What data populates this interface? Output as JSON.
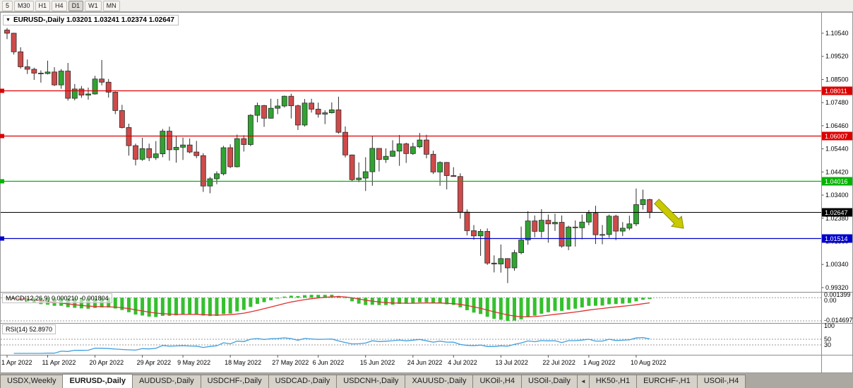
{
  "toolbar": {
    "timeframes": [
      {
        "label": "5",
        "active": false
      },
      {
        "label": "M30",
        "active": false
      },
      {
        "label": "H1",
        "active": false
      },
      {
        "label": "H4",
        "active": false
      },
      {
        "label": "D1",
        "active": true
      },
      {
        "label": "W1",
        "active": false
      },
      {
        "label": "MN",
        "active": false
      }
    ]
  },
  "chart": {
    "collapse_icon": "▼",
    "title": "EURUSD-,Daily  1.03201 1.03241 1.02374 1.02647",
    "macd_label": "MACD(12,26,9) 0.000210 -0.001804",
    "rsi_label": "RSI(14) 52.8970"
  },
  "price_axis": {
    "top_value": 1.1054,
    "step": 0.0102,
    "ticks": [
      "1.10540",
      "1.09520",
      "1.08500",
      "1.07480",
      "1.06460",
      "1.05440",
      "1.04420",
      "1.03400",
      "1.02380",
      "1.01360",
      "1.00340",
      "0.99320"
    ]
  },
  "levels": [
    {
      "label": "1.08011",
      "value": 1.08011,
      "color": "#dd0000",
      "kind": "hline"
    },
    {
      "label": "1.06007",
      "value": 1.06007,
      "color": "#dd0000",
      "kind": "hline"
    },
    {
      "label": "1.04016",
      "value": 1.04016,
      "color": "#00b400",
      "kind": "hline"
    },
    {
      "label": "1.02647",
      "value": 1.02647,
      "color": "#000000",
      "kind": "price"
    },
    {
      "label": "1.01514",
      "value": 1.01514,
      "color": "#0000cc",
      "kind": "hline"
    }
  ],
  "macd_axis": {
    "max_label": "0.001399",
    "zero_label": "0.00",
    "min_label": "-0.014697"
  },
  "rsi_axis": {
    "top_label": "100",
    "levels": [
      {
        "value": 50,
        "label": "50"
      },
      {
        "value": 30,
        "label": "30"
      }
    ]
  },
  "objects": [
    {
      "type": "arrow",
      "name": "down-right-arrow",
      "color": "#c9c900"
    }
  ],
  "colors": {
    "candle_up": "#31a331",
    "candle_down": "#cf4a4a",
    "candle_outline": "#2d2d2d",
    "macd_hist": "#35c02f",
    "macd_signal": "#e03030",
    "rsi_line": "#3f9fe0",
    "axis_line": "#8c8c8c",
    "level_dash": "#9a9a9a"
  },
  "chart_data": {
    "type": "candlestick",
    "symbol": "EURUSD-",
    "period": "Daily",
    "title": "EURUSD-,Daily",
    "last_ohlc": {
      "open": 1.03201,
      "high": 1.03241,
      "low": 1.02374,
      "close": 1.02647
    },
    "y_axis": {
      "min": 0.9932,
      "max": 1.1054
    },
    "indicators": [
      {
        "name": "MACD",
        "params": [
          12,
          26,
          9
        ],
        "values": [
          0.00021,
          -0.001804
        ],
        "scale_max": 0.001399,
        "scale_min": -0.014697
      },
      {
        "name": "RSI",
        "params": [
          14
        ],
        "value": 52.897,
        "levels": [
          50,
          30
        ]
      }
    ],
    "horizontal_lines": [
      1.08011,
      1.06007,
      1.04016,
      1.01514
    ],
    "current_price": 1.02647,
    "candles": [
      [
        "2022-04-01",
        1.1068,
        1.1077,
        1.1028,
        1.1054
      ],
      [
        "2022-04-04",
        1.1054,
        1.1056,
        1.096,
        1.0972
      ],
      [
        "2022-04-05",
        1.0972,
        1.0992,
        1.0898,
        1.0906
      ],
      [
        "2022-04-06",
        1.0906,
        1.0938,
        1.0874,
        1.0895
      ],
      [
        "2022-04-07",
        1.0895,
        1.0902,
        1.0848,
        1.0878
      ],
      [
        "2022-04-08",
        1.0878,
        1.089,
        1.0836,
        1.0876
      ],
      [
        "2022-04-11",
        1.0876,
        1.0933,
        1.0872,
        1.0883
      ],
      [
        "2022-04-12",
        1.0883,
        1.0904,
        1.0821,
        1.0826
      ],
      [
        "2022-04-13",
        1.0826,
        1.0896,
        1.0809,
        1.0887
      ],
      [
        "2022-04-14",
        1.0887,
        1.0923,
        1.0757,
        1.0767
      ],
      [
        "2022-04-15",
        1.0767,
        1.083,
        1.0758,
        1.0808
      ],
      [
        "2022-04-18",
        1.0808,
        1.0821,
        1.0769,
        1.0781
      ],
      [
        "2022-04-19",
        1.0781,
        1.0814,
        1.0761,
        1.0786
      ],
      [
        "2022-04-20",
        1.0786,
        1.0866,
        1.0783,
        1.0852
      ],
      [
        "2022-04-21",
        1.0852,
        1.0936,
        1.0824,
        1.0838
      ],
      [
        "2022-04-22",
        1.0838,
        1.0852,
        1.077,
        1.0794
      ],
      [
        "2022-04-25",
        1.0794,
        1.0797,
        1.0697,
        1.0713
      ],
      [
        "2022-04-26",
        1.0713,
        1.0738,
        1.0634,
        1.0638
      ],
      [
        "2022-04-27",
        1.0638,
        1.0655,
        1.0514,
        1.0558
      ],
      [
        "2022-04-28",
        1.0558,
        1.0567,
        1.0471,
        1.0498
      ],
      [
        "2022-04-29",
        1.0498,
        1.0593,
        1.0491,
        1.0545
      ],
      [
        "2022-05-02",
        1.0545,
        1.0567,
        1.049,
        1.0505
      ],
      [
        "2022-05-03",
        1.0505,
        1.0578,
        1.0495,
        1.0522
      ],
      [
        "2022-05-04",
        1.0522,
        1.0632,
        1.0507,
        1.0622
      ],
      [
        "2022-05-05",
        1.0622,
        1.0642,
        1.0492,
        1.054
      ],
      [
        "2022-05-06",
        1.054,
        1.0599,
        1.0483,
        1.0551
      ],
      [
        "2022-05-09",
        1.0551,
        1.0594,
        1.0495,
        1.0561
      ],
      [
        "2022-05-10",
        1.0561,
        1.059,
        1.0524,
        1.053
      ],
      [
        "2022-05-11",
        1.053,
        1.0579,
        1.0503,
        1.0514
      ],
      [
        "2022-05-12",
        1.0514,
        1.0525,
        1.0354,
        1.038
      ],
      [
        "2022-05-13",
        1.038,
        1.042,
        1.0348,
        1.0412
      ],
      [
        "2022-05-16",
        1.0412,
        1.0445,
        1.0388,
        1.0434
      ],
      [
        "2022-05-17",
        1.0434,
        1.0557,
        1.0427,
        1.0549
      ],
      [
        "2022-05-18",
        1.0549,
        1.0564,
        1.0459,
        1.0465
      ],
      [
        "2022-05-19",
        1.0465,
        1.0607,
        1.0462,
        1.0589
      ],
      [
        "2022-05-20",
        1.0589,
        1.0604,
        1.0532,
        1.0563
      ],
      [
        "2022-05-23",
        1.0563,
        1.0697,
        1.0556,
        1.0692
      ],
      [
        "2022-05-24",
        1.0692,
        1.0748,
        1.0661,
        1.0735
      ],
      [
        "2022-05-25",
        1.0735,
        1.0738,
        1.0641,
        1.0679
      ],
      [
        "2022-05-26",
        1.0679,
        1.0765,
        1.0677,
        1.0723
      ],
      [
        "2022-05-27",
        1.0723,
        1.0764,
        1.0697,
        1.0733
      ],
      [
        "2022-05-30",
        1.0733,
        1.0779,
        1.0726,
        1.0776
      ],
      [
        "2022-05-31",
        1.0776,
        1.0787,
        1.0678,
        1.0734
      ],
      [
        "2022-06-01",
        1.0734,
        1.0739,
        1.0627,
        1.0649
      ],
      [
        "2022-06-02",
        1.0649,
        1.0764,
        1.0642,
        1.0746
      ],
      [
        "2022-06-03",
        1.0746,
        1.0765,
        1.0704,
        1.0719
      ],
      [
        "2022-06-06",
        1.0719,
        1.0748,
        1.0682,
        1.0697
      ],
      [
        "2022-06-07",
        1.0697,
        1.0714,
        1.0653,
        1.0703
      ],
      [
        "2022-06-08",
        1.0703,
        1.0749,
        1.07,
        1.0716
      ],
      [
        "2022-06-09",
        1.0716,
        1.0774,
        1.0611,
        1.0617
      ],
      [
        "2022-06-10",
        1.0617,
        1.0643,
        1.0506,
        1.0517
      ],
      [
        "2022-06-13",
        1.0517,
        1.0519,
        1.0399,
        1.0408
      ],
      [
        "2022-06-14",
        1.0408,
        1.0484,
        1.0397,
        1.0415
      ],
      [
        "2022-06-15",
        1.0415,
        1.0507,
        1.0358,
        1.0443
      ],
      [
        "2022-06-16",
        1.0443,
        1.0601,
        1.0381,
        1.0546
      ],
      [
        "2022-06-17",
        1.0546,
        1.0546,
        1.0444,
        1.0497
      ],
      [
        "2022-06-20",
        1.0497,
        1.0546,
        1.0482,
        1.0511
      ],
      [
        "2022-06-21",
        1.0511,
        1.0582,
        1.0509,
        1.0534
      ],
      [
        "2022-06-22",
        1.0534,
        1.0605,
        1.0469,
        1.0566
      ],
      [
        "2022-06-23",
        1.0566,
        1.0571,
        1.0482,
        1.0523
      ],
      [
        "2022-06-24",
        1.0523,
        1.0571,
        1.0517,
        1.0553
      ],
      [
        "2022-06-27",
        1.0553,
        1.0614,
        1.0547,
        1.0583
      ],
      [
        "2022-06-28",
        1.0583,
        1.0606,
        1.0502,
        1.052
      ],
      [
        "2022-06-29",
        1.052,
        1.0536,
        1.0433,
        1.0442
      ],
      [
        "2022-06-30",
        1.0442,
        1.0489,
        1.0381,
        1.0484
      ],
      [
        "2022-07-01",
        1.0484,
        1.0486,
        1.0365,
        1.0426
      ],
      [
        "2022-07-04",
        1.0426,
        1.0463,
        1.0421,
        1.0422
      ],
      [
        "2022-07-05",
        1.0422,
        1.0436,
        1.0236,
        1.0265
      ],
      [
        "2022-07-06",
        1.0265,
        1.0277,
        1.0162,
        1.0183
      ],
      [
        "2022-07-07",
        1.0183,
        1.0208,
        1.0143,
        1.016
      ],
      [
        "2022-07-08",
        1.016,
        1.019,
        1.0072,
        1.018
      ],
      [
        "2022-07-11",
        1.018,
        1.0193,
        1.0032,
        1.004
      ],
      [
        "2022-07-12",
        1.004,
        1.0074,
        0.9999,
        1.0036
      ],
      [
        "2022-07-13",
        1.0036,
        1.0122,
        0.9998,
        1.006
      ],
      [
        "2022-07-14",
        1.006,
        1.0062,
        0.9952,
        1.0019
      ],
      [
        "2022-07-15",
        1.0019,
        1.0098,
        1.0006,
        1.0086
      ],
      [
        "2022-07-18",
        1.0086,
        1.0201,
        1.0079,
        1.0142
      ],
      [
        "2022-07-19",
        1.0142,
        1.0269,
        1.0121,
        1.0226
      ],
      [
        "2022-07-20",
        1.0226,
        1.025,
        1.0154,
        1.018
      ],
      [
        "2022-07-21",
        1.018,
        1.0278,
        1.0152,
        1.0229
      ],
      [
        "2022-07-22",
        1.0229,
        1.0254,
        1.013,
        1.0213
      ],
      [
        "2022-07-25",
        1.0213,
        1.0258,
        1.0182,
        1.022
      ],
      [
        "2022-07-26",
        1.022,
        1.025,
        1.0108,
        1.0115
      ],
      [
        "2022-07-27",
        1.0115,
        1.0205,
        1.0097,
        1.0199
      ],
      [
        "2022-07-28",
        1.0199,
        1.0228,
        1.0113,
        1.0196
      ],
      [
        "2022-07-29",
        1.0196,
        1.0254,
        1.0145,
        1.0221
      ],
      [
        "2022-08-01",
        1.0221,
        1.0274,
        1.0207,
        1.026
      ],
      [
        "2022-08-02",
        1.026,
        1.0293,
        1.0124,
        1.0165
      ],
      [
        "2022-08-03",
        1.0165,
        1.0208,
        1.0123,
        1.0166
      ],
      [
        "2022-08-04",
        1.0166,
        1.0254,
        1.0152,
        1.0247
      ],
      [
        "2022-08-05",
        1.0247,
        1.0253,
        1.0141,
        1.0181
      ],
      [
        "2022-08-08",
        1.0181,
        1.0221,
        1.0159,
        1.0194
      ],
      [
        "2022-08-09",
        1.0194,
        1.0249,
        1.0185,
        1.0213
      ],
      [
        "2022-08-10",
        1.0213,
        1.0369,
        1.0203,
        1.0298
      ],
      [
        "2022-08-11",
        1.0298,
        1.0364,
        1.0276,
        1.03201
      ],
      [
        "2022-08-12",
        1.03201,
        1.03241,
        1.02374,
        1.02647
      ]
    ],
    "date_ticks": [
      {
        "i": 0,
        "label": "1 Apr 2022"
      },
      {
        "i": 6,
        "label": "11 Apr 2022"
      },
      {
        "i": 13,
        "label": "20 Apr 2022"
      },
      {
        "i": 20,
        "label": "29 Apr 2022"
      },
      {
        "i": 26,
        "label": "9 May 2022"
      },
      {
        "i": 33,
        "label": "18 May 2022"
      },
      {
        "i": 40,
        "label": "27 May 2022"
      },
      {
        "i": 46,
        "label": "6 Jun 2022"
      },
      {
        "i": 53,
        "label": "15 Jun 2022"
      },
      {
        "i": 60,
        "label": "24 Jun 2022"
      },
      {
        "i": 66,
        "label": "4 Jul 2022"
      },
      {
        "i": 73,
        "label": "13 Jul 2022"
      },
      {
        "i": 80,
        "label": "22 Jul 2022"
      },
      {
        "i": 86,
        "label": "1 Aug 2022"
      },
      {
        "i": 93,
        "label": "10 Aug 2022"
      }
    ]
  },
  "bottom_tabs": {
    "scroll_icon": "◄",
    "scroll_icon_after": 8,
    "items": [
      {
        "label": "USDX,Weekly",
        "active": false
      },
      {
        "label": "EURUSD-,Daily",
        "active": true
      },
      {
        "label": "AUDUSD-,Daily",
        "active": false
      },
      {
        "label": "USDCHF-,Daily",
        "active": false
      },
      {
        "label": "USDCAD-,Daily",
        "active": false
      },
      {
        "label": "USDCNH-,Daily",
        "active": false
      },
      {
        "label": "XAUUSD-,Daily",
        "active": false
      },
      {
        "label": "UKOil-,H4",
        "active": false
      },
      {
        "label": "USOil-,Daily",
        "active": false
      },
      {
        "label": "HK50-,H1",
        "active": false
      },
      {
        "label": "EURCHF-,H1",
        "active": false
      },
      {
        "label": "USOil-,H4",
        "active": false
      }
    ]
  }
}
